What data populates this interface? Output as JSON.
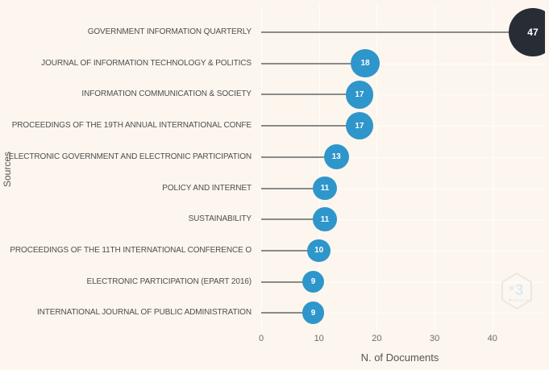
{
  "chart_data": {
    "type": "bar",
    "variant": "lollipop",
    "orientation": "horizontal",
    "categories": [
      "GOVERNMENT INFORMATION QUARTERLY",
      "JOURNAL OF INFORMATION TECHNOLOGY & POLITICS",
      "INFORMATION COMMUNICATION & SOCIETY",
      "PROCEEDINGS OF THE 19TH ANNUAL INTERNATIONAL CONFE",
      "ELECTRONIC GOVERNMENT AND ELECTRONIC PARTICIPATION",
      "POLICY AND INTERNET",
      "SUSTAINABILITY",
      "PROCEEDINGS OF THE 11TH INTERNATIONAL CONFERENCE O",
      "ELECTRONIC PARTICIPATION (EPART 2016)",
      "INTERNATIONAL JOURNAL OF PUBLIC ADMINISTRATION"
    ],
    "values": [
      47,
      18,
      17,
      17,
      13,
      11,
      11,
      10,
      9,
      9
    ],
    "title": "",
    "xlabel": "N. of Documents",
    "ylabel": "Sources",
    "xticks": [
      0,
      10,
      20,
      30,
      40
    ],
    "xlim": [
      0,
      49
    ],
    "grid": true,
    "legend": "none",
    "colors": {
      "marker": "#2E96CB",
      "marker_max": "#282C34",
      "stem": "#8A8A8A",
      "background": "#FDF6EE",
      "gridline": "#FFFFFF",
      "label_text": "#4D4D4D",
      "tick_text": "#6B6B6B",
      "value_text": "#FFFFFF"
    }
  },
  "watermark": {
    "glyph": "3",
    "caption": "bibliometrix"
  }
}
